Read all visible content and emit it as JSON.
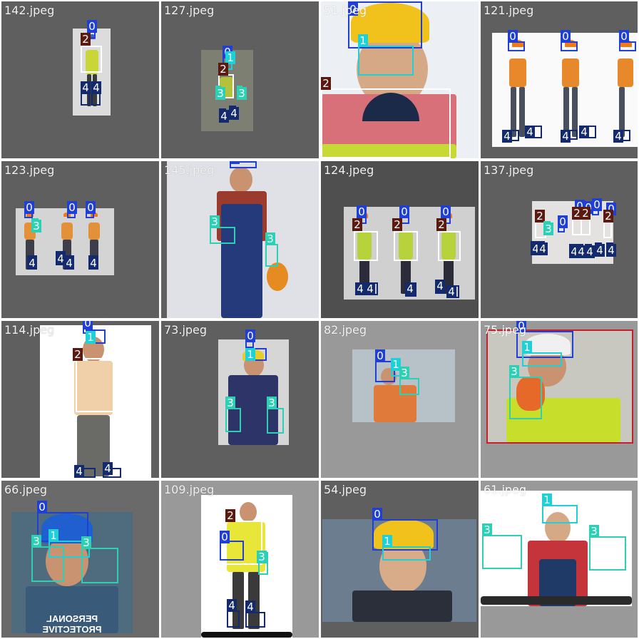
{
  "colors": {
    "0": "#1f3fd6",
    "1": "#1fd1d6",
    "2": "#ffffff",
    "3": "#2ed0b5",
    "4": "#132a6e",
    "label_bg": {
      "0": "#1f3fd6",
      "1": "#1fd1d6",
      "2": "#5a1a10",
      "3": "#2ed0b5",
      "4": "#132a6e"
    }
  },
  "tiles": [
    {
      "file": "142.jpeg"
    },
    {
      "file": "127.jpeg"
    },
    {
      "file": "51.jpeg"
    },
    {
      "file": "121.jpeg"
    },
    {
      "file": "123.jpeg"
    },
    {
      "file": "145.jpeg"
    },
    {
      "file": "124.jpeg"
    },
    {
      "file": "137.jpeg"
    },
    {
      "file": "114.jpeg"
    },
    {
      "file": "73.jpeg"
    },
    {
      "file": "82.jpeg"
    },
    {
      "file": "75.jpeg"
    },
    {
      "file": "66.jpeg"
    },
    {
      "file": "109.jpeg"
    },
    {
      "file": "54.jpeg"
    },
    {
      "file": "61.jpeg"
    }
  ],
  "tile_66_caption": "PERSONAL PROTECTIVE EQUIPMENT"
}
